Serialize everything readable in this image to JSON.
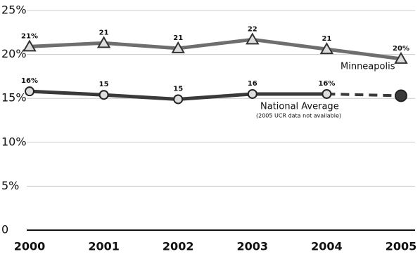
{
  "chart_data": {
    "type": "line",
    "categories": [
      "2000",
      "2001",
      "2002",
      "2003",
      "2004",
      "2005"
    ],
    "ylim": [
      0,
      25
    ],
    "yticks": [
      0,
      {
        "value": 5,
        "label": "5%"
      },
      {
        "value": 10,
        "label": "10%"
      },
      {
        "value": 15,
        "label": "15%"
      },
      {
        "value": 20,
        "label": "20%"
      },
      {
        "value": 25,
        "label": "25%"
      }
    ],
    "grid": true,
    "annotation": "(2005 UCR data not available)",
    "series": [
      {
        "name": "Minneapolis",
        "color": "#6e6e6e",
        "marker": "triangle",
        "values": [
          20.9,
          21.3,
          20.7,
          21.7,
          20.6,
          19.5
        ],
        "value_labels": [
          "21%",
          "21",
          "21",
          "22",
          "21",
          "20%"
        ]
      },
      {
        "name": "National Average",
        "color": "#3a3a3a",
        "marker": "circle",
        "dashed_last": true,
        "values": [
          15.8,
          15.4,
          14.9,
          15.5,
          15.5,
          15.3
        ],
        "value_labels": [
          "16%",
          "15",
          "15",
          "16",
          "16%",
          null
        ]
      }
    ]
  }
}
